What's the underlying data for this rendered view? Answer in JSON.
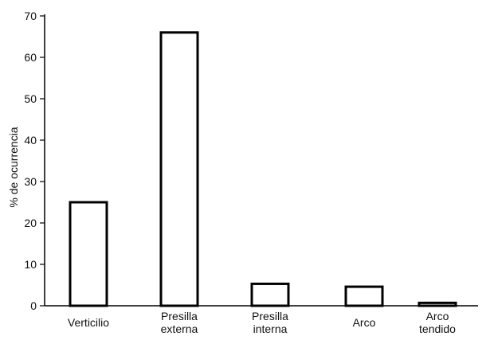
{
  "chart_data": {
    "type": "bar",
    "categories": [
      [
        "Verticilio"
      ],
      [
        "Presilla",
        "externa"
      ],
      [
        "Presilla",
        "interna"
      ],
      [
        "Arco"
      ],
      [
        "Arco",
        "tendido"
      ]
    ],
    "values": [
      25,
      66,
      5.3,
      4.6,
      0.7
    ],
    "title": "",
    "xlabel": "",
    "ylabel": "% de ocurrencia",
    "ylim": [
      0,
      70
    ],
    "yticks": [
      0,
      10,
      20,
      30,
      40,
      50,
      60,
      70
    ],
    "grid": false,
    "legend": "none",
    "colors": {
      "bar_fill": "#ffffff",
      "bar_stroke": "#000000",
      "axis": "#000000",
      "text": "#111111"
    }
  }
}
